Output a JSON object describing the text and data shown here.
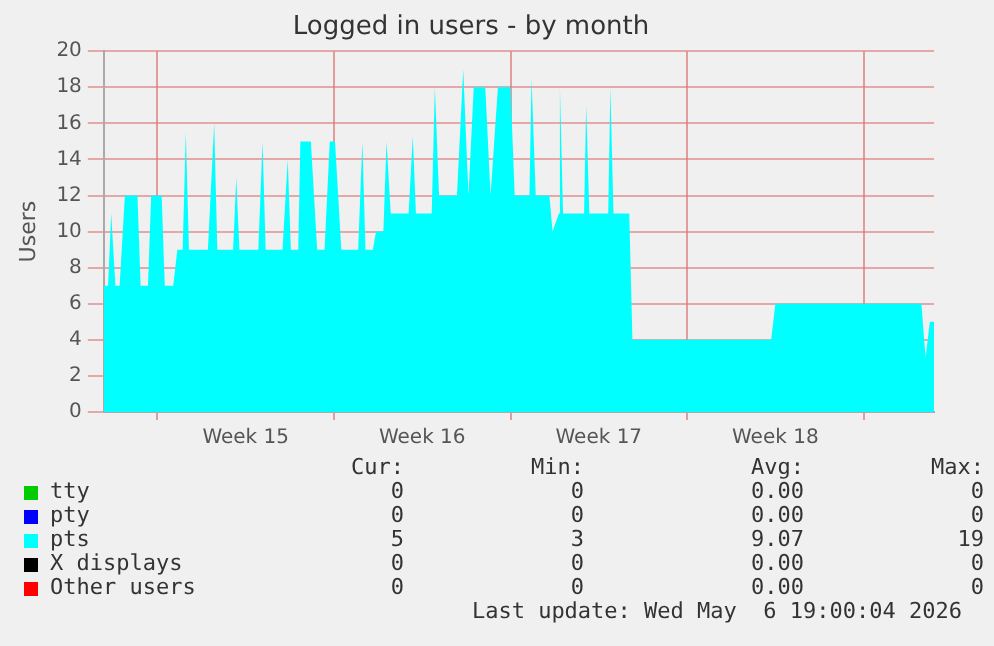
{
  "chart_data": {
    "type": "area",
    "title": "Logged in users - by month",
    "ylabel": "Users",
    "xlim": [
      "2026-04-03T21:00",
      "2026-05-06T19:00"
    ],
    "xticks": [
      {
        "value": "2026-04-06",
        "label": null
      },
      {
        "value": "2026-04-09T12:00",
        "label": "Week 15"
      },
      {
        "value": "2026-04-13",
        "label": null
      },
      {
        "value": "2026-04-16T12:00",
        "label": "Week 16"
      },
      {
        "value": "2026-04-20",
        "label": null
      },
      {
        "value": "2026-04-23T12:00",
        "label": "Week 17"
      },
      {
        "value": "2026-04-27",
        "label": null
      },
      {
        "value": "2026-04-30T12:00",
        "label": "Week 18"
      },
      {
        "value": "2026-05-04",
        "label": null
      }
    ],
    "ylim": [
      0,
      20
    ],
    "yticks": [
      0,
      2,
      4,
      6,
      8,
      10,
      12,
      14,
      16,
      18,
      20
    ],
    "grid": true,
    "legend": "bottom",
    "series": [
      {
        "name": "tty",
        "color": "#00cc00"
      },
      {
        "name": "pty",
        "color": "#0000ff"
      },
      {
        "name": "pts",
        "color": "#00ffff",
        "x": [
          "2026-04-03T21:00",
          "2026-04-04T01:00",
          "2026-04-04T04:00",
          "2026-04-04T08:00",
          "2026-04-04T12:00",
          "2026-04-04T17:00",
          "2026-04-05T05:00",
          "2026-04-05T08:00",
          "2026-04-05T15:00",
          "2026-04-05T18:00",
          "2026-04-06T04:00",
          "2026-04-06T07:00",
          "2026-04-06T15:00",
          "2026-04-06T19:00",
          "2026-04-07T00:00",
          "2026-04-07T03:00",
          "2026-04-07T06:00",
          "2026-04-08T00:00",
          "2026-04-08T06:00",
          "2026-04-08T09:00",
          "2026-04-09T00:00",
          "2026-04-09T03:00",
          "2026-04-09T06:00",
          "2026-04-10T00:00",
          "2026-04-10T04:00",
          "2026-04-10T07:00",
          "2026-04-10T23:00",
          "2026-04-11T04:00",
          "2026-04-11T07:00",
          "2026-04-11T14:00",
          "2026-04-11T16:00",
          "2026-04-12T02:00",
          "2026-04-12T08:00",
          "2026-04-12T15:00",
          "2026-04-12T20:00",
          "2026-04-13T01:00",
          "2026-04-13T07:00",
          "2026-04-13T23:00",
          "2026-04-14T03:00",
          "2026-04-14T06:00",
          "2026-04-14T13:00",
          "2026-04-14T16:00",
          "2026-04-14T23:00",
          "2026-04-15T02:00",
          "2026-04-15T06:00",
          "2026-04-15T23:00",
          "2026-04-16T03:00",
          "2026-04-16T06:00",
          "2026-04-16T21:00",
          "2026-04-17T00:00",
          "2026-04-17T04:00",
          "2026-04-17T21:00",
          "2026-04-18T03:00",
          "2026-04-18T08:00",
          "2026-04-18T13:00",
          "2026-04-19T00:00",
          "2026-04-19T05:00",
          "2026-04-19T12:00",
          "2026-04-20T00:00",
          "2026-04-20T04:00",
          "2026-04-20T18:00",
          "2026-04-20T20:00",
          "2026-04-21T00:00",
          "2026-04-21T13:00",
          "2026-04-21T16:00",
          "2026-04-21T22:00",
          "2026-04-21T23:00",
          "2026-04-22T02:00",
          "2026-04-22T22:00",
          "2026-04-23T00:00",
          "2026-04-23T03:00",
          "2026-04-23T21:00",
          "2026-04-23T23:00",
          "2026-04-24T02:00",
          "2026-04-24T17:00",
          "2026-04-24T20:00",
          "2026-04-30T08:00",
          "2026-04-30T12:00",
          "2026-05-06T07:00",
          "2026-05-06T11:00",
          "2026-05-06T15:00",
          "2026-05-06T19:00"
        ],
        "values": [
          7,
          7,
          11,
          7,
          7,
          12,
          12,
          7,
          7,
          12,
          12,
          7,
          7,
          9,
          9,
          15.5,
          9,
          9,
          16,
          9,
          9,
          13,
          9,
          9,
          15,
          9,
          9,
          14,
          9,
          9,
          15,
          15,
          9,
          9,
          15,
          15,
          9,
          9,
          15,
          9,
          9,
          10,
          10,
          15,
          11,
          11,
          15.3,
          11,
          11,
          18,
          12,
          12,
          19,
          12,
          18,
          18,
          12,
          18,
          18,
          12,
          12,
          18.5,
          12,
          12,
          10,
          11,
          18,
          11,
          11,
          17,
          11,
          11,
          18,
          11,
          11,
          4,
          4,
          6,
          6,
          3,
          5,
          5
        ]
      },
      {
        "name": "X displays",
        "color": "#000000"
      },
      {
        "name": "Other users",
        "color": "#ff0000"
      }
    ],
    "annotations": [
      "Cur:",
      "Min:",
      "Avg:",
      "Max:",
      "0",
      "0",
      "0.00",
      "0",
      "0",
      "0",
      "0.00",
      "0",
      "5",
      "3",
      "9.07",
      "19",
      "0",
      "0",
      "0.00",
      "0",
      "0",
      "0",
      "0.00",
      "0",
      "Last update: Wed May  6 19:00:04 2026"
    ]
  }
}
